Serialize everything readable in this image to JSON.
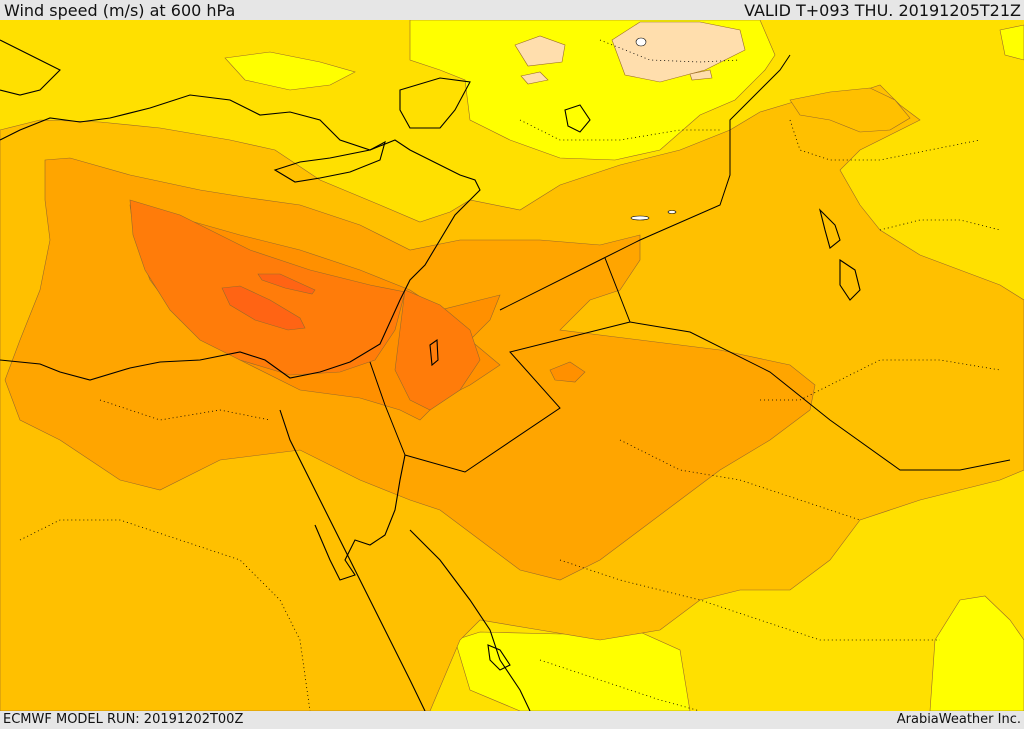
{
  "header": {
    "title": "Wind speed (m/s) at 600 hPa",
    "valid": "VALID T+093 THU. 20191205T21Z"
  },
  "footer": {
    "model_run": "ECMWF MODEL RUN: 20191202T00Z",
    "credit": "ArabiaWeather Inc."
  },
  "map": {
    "variable": "wind speed",
    "units": "m/s",
    "level": "600 hPa",
    "fill_colors": {
      "lightest": "#ffdead",
      "light_yellow": "#ffff00",
      "yellow": "#ffe000",
      "yellow_orange": "#ffc000",
      "light_orange": "#ffa500",
      "orange": "#ff9000",
      "dark_orange": "#ff7c0a",
      "red_orange": "#ff6414"
    }
  }
}
